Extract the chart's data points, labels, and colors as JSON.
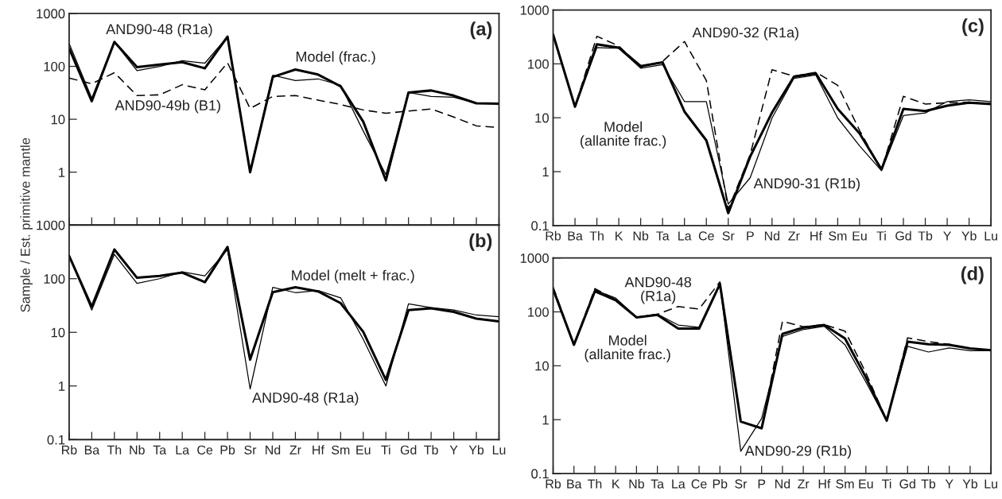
{
  "chart_data": [
    {
      "type": "line",
      "log": "y",
      "ylim": [
        0.1,
        1000
      ],
      "yticks": [
        1000,
        100,
        10,
        1,
        {
          "value": 0.1,
          "label": null
        }
      ],
      "tick_labels": "y",
      "categories": [
        null,
        null,
        null,
        null,
        null,
        null,
        null,
        null,
        null,
        null,
        null,
        null,
        null,
        null,
        null,
        null,
        null,
        null,
        null,
        null
      ],
      "series": [
        {
          "name": "Model (frac.)",
          "color": "#000000",
          "line_style": "solid",
          "values": [
            220,
            22,
            290,
            97,
            108,
            120,
            92,
            365,
            1.0,
            63,
            87,
            70,
            42,
            9,
            0.7,
            32,
            35,
            28,
            20,
            19.7
          ]
        },
        {
          "name": "AND90-48 (R1a)",
          "color": "#000000",
          "line_style": "solid",
          "values": [
            270,
            25,
            290,
            83,
            100,
            128,
            115,
            365,
            1.05,
            68,
            54,
            58,
            44,
            6,
            0.9,
            32,
            27,
            26,
            20,
            20
          ]
        },
        {
          "name": "AND90-49b (B1)",
          "color": "#000000",
          "line_style": "dashed",
          "values": [
            60,
            47,
            76,
            28,
            29,
            45,
            36,
            117,
            16,
            27,
            28,
            23,
            19,
            15,
            13,
            14.3,
            15.7,
            11,
            7.5,
            7
          ]
        }
      ],
      "annotations": [
        "(a)"
      ]
    },
    {
      "type": "line",
      "log": "y",
      "ylim": [
        0.1,
        1000
      ],
      "yticks": [
        0.1,
        1,
        10,
        100,
        1000
      ],
      "ylabel": "Sample / Est. primitive mantle",
      "categories": [
        "Rb",
        "Ba",
        "Th",
        "Nb",
        "Ta",
        "La",
        "Ce",
        "Pb",
        "Sr",
        "Nd",
        "Zr",
        "Hf",
        "Sm",
        "Eu",
        "Ti",
        "Gd",
        "Tb",
        "Y",
        "Yb",
        "Lu"
      ],
      "series": [
        {
          "name": "Model (melt + frac.)",
          "color": "#000000",
          "line_style": "solid",
          "values": [
            265,
            30,
            350,
            104,
            113,
            130,
            86,
            390,
            3.1,
            56,
            69,
            58,
            35,
            10.2,
            1.3,
            26,
            28,
            24,
            18,
            16
          ]
        },
        {
          "name": "AND90-48 (R1a)",
          "color": "#000000",
          "line_style": "solid",
          "values": [
            265,
            26,
            285,
            82,
            100,
            134,
            113,
            350,
            0.88,
            69,
            55,
            60,
            44,
            7.4,
            1.0,
            34,
            29,
            26,
            21,
            19.5
          ]
        }
      ],
      "annotations": [
        "(b)"
      ]
    },
    {
      "type": "line",
      "log": "y",
      "ylim": [
        0.1,
        1000
      ],
      "yticks": [
        0.1,
        1,
        10,
        100,
        1000
      ],
      "categories": [
        "Rb",
        "Ba",
        "Th",
        "K",
        "Nb",
        "Ta",
        "La",
        "Ce",
        "Sr",
        "P",
        "Nd",
        "Zr",
        "Hf",
        "Sm",
        "Eu",
        "Ti",
        "Gd",
        "Tb",
        "Y",
        "Yb",
        "Lu"
      ],
      "series": [
        {
          "name": "Model\n(allanite frac.)",
          "color": "#000000",
          "line_style": "solid",
          "values": [
            350,
            16,
            230,
            200,
            91,
            107,
            13,
            3.8,
            0.17,
            1.9,
            12.5,
            58,
            67,
            14.6,
            5.1,
            1.1,
            14.6,
            13.3,
            16.7,
            19,
            18
          ]
        },
        {
          "name": "AND90-31 (R1b)",
          "color": "#000000",
          "line_style": "solid",
          "values": [
            350,
            16,
            200,
            195,
            83,
            97,
            20,
            20,
            0.25,
            0.77,
            9.9,
            54,
            62,
            9.9,
            3.0,
            1.04,
            11,
            12.3,
            20,
            21.5,
            20
          ]
        },
        {
          "name": "AND90-32 (R1a)",
          "color": "#000000",
          "line_style": "dashed",
          "values": [
            350,
            16,
            325,
            215,
            87,
            111,
            260,
            49,
            0.2,
            2.05,
            78,
            59,
            70,
            40,
            5.8,
            1.07,
            25,
            18,
            19,
            19.5,
            18
          ]
        }
      ],
      "annotations": [
        "(c)"
      ]
    },
    {
      "type": "line",
      "log": "y",
      "ylim": [
        0.1,
        1000
      ],
      "yticks": [
        0.1,
        1,
        10,
        100,
        1000
      ],
      "categories": [
        "Rb",
        "Ba",
        "Th",
        "K",
        "Nb",
        "Ta",
        "La",
        "Ce",
        "Pb",
        "Sr",
        "P",
        "Nd",
        "Zr",
        "Hf",
        "Sm",
        "Eu",
        "Ti",
        "Gd",
        "Tb",
        "Y",
        "Yb",
        "Lu"
      ],
      "series": [
        {
          "name": "Model\n(allanite frac.)",
          "color": "#000000",
          "line_style": "solid",
          "values": [
            265,
            24.5,
            240,
            165,
            79,
            88,
            49,
            49,
            330,
            0.92,
            0.69,
            39,
            51,
            57,
            32,
            6.1,
            0.96,
            28,
            25,
            24.5,
            21,
            19.5
          ]
        },
        {
          "name": "AND90-29 (R1b)",
          "color": "#000000",
          "line_style": "solid",
          "values": [
            255,
            24,
            255,
            180,
            80,
            91,
            57,
            52,
            330,
            0.26,
            1.05,
            35,
            47,
            54,
            24.5,
            5,
            0.95,
            23,
            18,
            21.5,
            19,
            19
          ]
        },
        {
          "name": "AND90-48\n(R1a)",
          "color": "#000000",
          "line_style": "dashed",
          "values": [
            290,
            24.5,
            270,
            170,
            79,
            90,
            126,
            113,
            360,
            0.92,
            0.69,
            67,
            53,
            58,
            44,
            7.4,
            0.96,
            33,
            28,
            25,
            21,
            19.5
          ]
        }
      ],
      "annotations": [
        "(d)"
      ]
    }
  ]
}
